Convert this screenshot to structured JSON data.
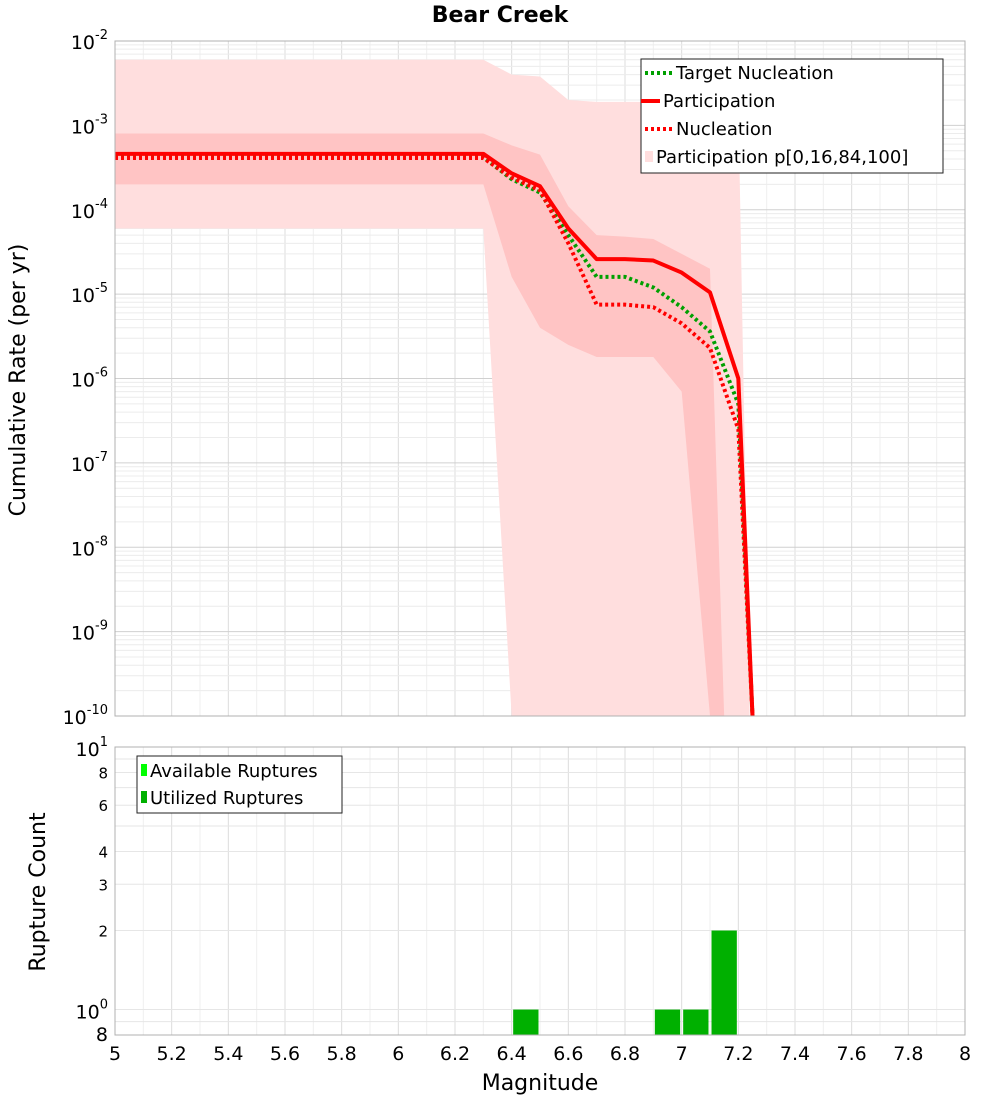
{
  "chart_data": [
    {
      "type": "line",
      "title": "Bear Creek",
      "xlabel": "",
      "ylabel": "Cumulative Rate (per yr)",
      "xlim": [
        5,
        8
      ],
      "ylim": [
        1e-10,
        0.01
      ],
      "yscale": "log",
      "grid": true,
      "legend_position": "top-right",
      "y_tick_labels": [
        {
          "base": "10",
          "exp": "-2"
        },
        {
          "base": "10",
          "exp": "-3"
        },
        {
          "base": "10",
          "exp": "-4"
        },
        {
          "base": "10",
          "exp": "-5"
        },
        {
          "base": "10",
          "exp": "-6"
        },
        {
          "base": "10",
          "exp": "-7"
        },
        {
          "base": "10",
          "exp": "-8"
        },
        {
          "base": "10",
          "exp": "-9"
        },
        {
          "base": "10",
          "exp": "-10"
        }
      ],
      "x": [
        5.0,
        6.3,
        6.4,
        6.5,
        6.6,
        6.7,
        6.8,
        6.9,
        7.0,
        7.1,
        7.2,
        7.25
      ],
      "series": [
        {
          "name": "Target Nucleation",
          "color": "#00a000",
          "style": "dotted",
          "values": [
            0.00042,
            0.00042,
            0.00023,
            0.00016,
            5e-05,
            1.6e-05,
            1.6e-05,
            1.2e-05,
            7e-06,
            3.6e-06,
            5e-07,
            1e-10
          ]
        },
        {
          "name": "Participation",
          "color": "#ff0000",
          "style": "solid",
          "values": [
            0.00046,
            0.00046,
            0.00027,
            0.00019,
            6e-05,
            2.6e-05,
            2.6e-05,
            2.5e-05,
            1.8e-05,
            1.05e-05,
            1e-06,
            1e-10
          ]
        },
        {
          "name": "Nucleation",
          "color": "#ff0000",
          "style": "dotted",
          "values": [
            0.00041,
            0.00041,
            0.00024,
            0.00017,
            4e-05,
            7.5e-06,
            7.5e-06,
            7e-06,
            4.5e-06,
            2.3e-06,
            2.5e-07,
            1e-10
          ]
        }
      ],
      "bands": [
        {
          "name": "Participation p[0,16,84,100]",
          "color": "#ffdede",
          "x": [
            5.0,
            6.3,
            6.4,
            6.5,
            6.6,
            6.7,
            6.8,
            6.9,
            7.0,
            7.1,
            7.2,
            7.24
          ],
          "upper": [
            0.006,
            0.006,
            0.004,
            0.0038,
            0.002,
            0.0019,
            0.0019,
            0.0019,
            0.0019,
            0.0019,
            0.0018,
            1e-10
          ],
          "lower": [
            6e-05,
            6e-05,
            1e-10,
            1e-10,
            1e-10,
            1e-10,
            1e-10,
            1e-10,
            1e-10,
            1e-10,
            1e-10,
            1e-10
          ]
        },
        {
          "name": "",
          "color": "#ffc4c4",
          "x": [
            5.0,
            6.3,
            6.4,
            6.5,
            6.6,
            6.7,
            6.8,
            6.9,
            7.0,
            7.1,
            7.15
          ],
          "upper": [
            0.0008,
            0.0008,
            0.00058,
            0.00045,
            0.00011,
            5e-05,
            4.8e-05,
            4.5e-05,
            3e-05,
            2e-05,
            1e-10
          ],
          "lower": [
            0.0002,
            0.0002,
            1.6e-05,
            4e-06,
            2.5e-06,
            1.8e-06,
            1.8e-06,
            1.8e-06,
            7e-07,
            1e-10,
            1e-10
          ]
        }
      ]
    },
    {
      "type": "bar",
      "title": "",
      "xlabel": "Magnitude",
      "ylabel": "Rupture Count",
      "xlim": [
        5,
        8
      ],
      "ylim": [
        0.8,
        10
      ],
      "yscale": "log",
      "grid": true,
      "legend_position": "top-left",
      "x_ticks": [
        "5",
        "5.2",
        "5.4",
        "5.6",
        "5.8",
        "6",
        "6.2",
        "6.4",
        "6.6",
        "6.8",
        "7",
        "7.2",
        "7.4",
        "7.6",
        "7.8",
        "8"
      ],
      "y_tick_labels": [
        {
          "base": "10",
          "exp": "1"
        },
        {
          "base": "8",
          "exp": ""
        },
        {
          "base": "6",
          "exp": ""
        },
        {
          "base": "4",
          "exp": ""
        },
        {
          "base": "3",
          "exp": ""
        },
        {
          "base": "2",
          "exp": ""
        },
        {
          "base": "10",
          "exp": "0"
        },
        {
          "base": "8",
          "exp": ""
        }
      ],
      "bin_width": 0.1,
      "series": [
        {
          "name": "Available Ruptures",
          "color": "#00ff00",
          "bins": []
        },
        {
          "name": "Utilized Ruptures",
          "color": "#00b000",
          "bins": [
            {
              "x": 6.45,
              "count": 1
            },
            {
              "x": 6.95,
              "count": 1
            },
            {
              "x": 7.05,
              "count": 1
            },
            {
              "x": 7.15,
              "count": 2
            }
          ]
        }
      ]
    }
  ]
}
